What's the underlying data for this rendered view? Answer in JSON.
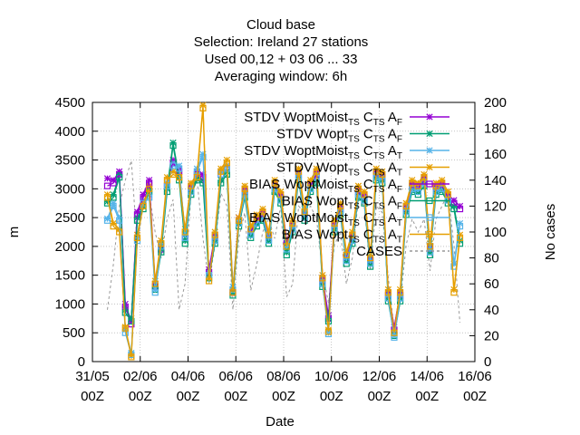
{
  "chart_data": {
    "type": "line",
    "title_lines": [
      "Cloud base",
      "Selection: Ireland      27 stations",
      "Used  00,12  + 03 06 ... 33",
      "Averaging window:  6h"
    ],
    "xlabel": "Date",
    "ylabel": "m",
    "y2label": "No cases",
    "xlim": [
      "2021-05-31 00:00",
      "2021-06-16 00:00"
    ],
    "ylim": [
      0,
      4500
    ],
    "y2lim": [
      0,
      200
    ],
    "x_ticks": [
      "31/05\n00Z",
      "02/06\n00Z",
      "04/06\n00Z",
      "06/06\n00Z",
      "08/06\n00Z",
      "10/06\n00Z",
      "12/06\n00Z",
      "14/06\n00Z",
      "16/06\n00Z"
    ],
    "y_ticks": [
      0,
      500,
      1000,
      1500,
      2000,
      2500,
      3000,
      3500,
      4000,
      4500
    ],
    "y2_ticks": [
      0,
      20,
      40,
      60,
      80,
      100,
      120,
      140,
      160,
      180,
      200
    ],
    "grid": true,
    "legend_position": "top-right",
    "x_hours": [
      15,
      21,
      27,
      33,
      39,
      45,
      51,
      57,
      63,
      69,
      75,
      81,
      87,
      93,
      99,
      105,
      111,
      117,
      123,
      129,
      135,
      141,
      147,
      153,
      159,
      165,
      171,
      177,
      183,
      189,
      195,
      201,
      207,
      213,
      219,
      225,
      231,
      237,
      243,
      249,
      255,
      261,
      267,
      273,
      279,
      285,
      291,
      297,
      303,
      309,
      315,
      321,
      327,
      333,
      339,
      345,
      351,
      357,
      363,
      369
    ],
    "series": [
      {
        "name": "STDV WoptMoist_{TS} C_{TS} A_F",
        "axis": "y",
        "color": "#9400d3",
        "marker": "asterisk",
        "values": [
          3180,
          3150,
          3300,
          1000,
          700,
          2600,
          2900,
          3150,
          1350,
          2000,
          3100,
          3500,
          3350,
          2200,
          3050,
          3300,
          3250,
          1600,
          2200,
          3300,
          3400,
          1250,
          2500,
          3000,
          2300,
          2500,
          2600,
          2200,
          3100,
          2900,
          2100,
          2400,
          3300,
          2600,
          3100,
          3300,
          1450,
          800,
          2400,
          2700,
          1850,
          2200,
          3000,
          2900,
          1800,
          3300,
          3250,
          1200,
          600,
          1200,
          2700,
          3100,
          3050,
          3200,
          2000,
          3050,
          3100,
          2900,
          2800,
          2700
        ]
      },
      {
        "name": "STDV Wopt_{TS} C_{TS} A_F",
        "axis": "y",
        "color": "#009e73",
        "marker": "asterisk",
        "values": [
          2780,
          2900,
          3250,
          900,
          750,
          2500,
          2700,
          3000,
          1300,
          1950,
          3000,
          3800,
          3200,
          2100,
          2950,
          3200,
          3150,
          1500,
          2100,
          3150,
          3300,
          1200,
          2400,
          2900,
          2200,
          2400,
          2500,
          2100,
          3000,
          2800,
          1900,
          2300,
          3200,
          2500,
          3000,
          3150,
          1350,
          750,
          2300,
          2600,
          1750,
          2100,
          2900,
          2800,
          1700,
          3200,
          3150,
          1100,
          500,
          1100,
          2600,
          3000,
          2950,
          3100,
          1900,
          2950,
          3000,
          2800,
          2700,
          2100
        ]
      },
      {
        "name": "STDV WoptMoist_{TS} C_{TS} A_T",
        "axis": "y",
        "color": "#56b4e9",
        "marker": "asterisk",
        "values": [
          2480,
          2750,
          2500,
          550,
          150,
          2150,
          2800,
          2900,
          1250,
          2050,
          3100,
          3450,
          3400,
          2200,
          3000,
          3350,
          3600,
          1550,
          2150,
          3300,
          3400,
          1300,
          2450,
          2950,
          2250,
          2450,
          2550,
          2150,
          3050,
          2850,
          2000,
          2350,
          3250,
          2550,
          3050,
          3250,
          1400,
          500,
          2350,
          2650,
          1800,
          2150,
          2950,
          2850,
          1750,
          3250,
          3200,
          1150,
          450,
          1150,
          2650,
          3050,
          3000,
          3150,
          1950,
          3000,
          3050,
          2850,
          1700,
          2400
        ]
      },
      {
        "name": "STDV Wopt_{TS} C_{TS} A_T",
        "axis": "y",
        "color": "#e69f00",
        "marker": "asterisk",
        "values": [
          2900,
          2400,
          2300,
          600,
          100,
          2200,
          2750,
          3050,
          1400,
          2100,
          3200,
          3300,
          3250,
          2300,
          3100,
          3250,
          4450,
          1450,
          2250,
          3350,
          3500,
          1250,
          2500,
          3050,
          2350,
          2550,
          2650,
          2250,
          3150,
          2950,
          2050,
          2450,
          3350,
          2650,
          3150,
          3350,
          1500,
          550,
          2450,
          2750,
          1900,
          2250,
          3050,
          2950,
          1850,
          3350,
          3300,
          1250,
          550,
          1250,
          2750,
          3150,
          3100,
          3250,
          2050,
          3100,
          3150,
          2950,
          1250,
          2200
        ]
      },
      {
        "name": "BIAS WoptMoist_{TS} C_{TS} A_F",
        "axis": "y",
        "color": "#9400d3",
        "marker": "box",
        "values": [
          3050,
          3100,
          3250,
          950,
          650,
          2550,
          2850,
          3100,
          1300,
          1950,
          3050,
          3450,
          3300,
          2150,
          3000,
          3250,
          3200,
          1550,
          2150,
          3250,
          3350,
          1200,
          2450,
          2950,
          2250,
          2450,
          2550,
          2150,
          3050,
          2850,
          2050,
          2350,
          3250,
          2550,
          3050,
          3250,
          1400,
          750,
          2350,
          2650,
          1800,
          2150,
          2950,
          2850,
          1750,
          3250,
          3200,
          1150,
          550,
          1150,
          2650,
          3050,
          3000,
          3150,
          1950,
          3000,
          3050,
          2850,
          2750,
          2650
        ]
      },
      {
        "name": "BIAS Wopt_{TS} C_{TS} A_F",
        "axis": "y",
        "color": "#009e73",
        "marker": "box",
        "values": [
          2750,
          2850,
          3200,
          850,
          700,
          2450,
          2650,
          2950,
          1250,
          1900,
          2950,
          3750,
          3150,
          2050,
          2900,
          3150,
          3100,
          1450,
          2050,
          3100,
          3250,
          1150,
          2350,
          2850,
          2150,
          2350,
          2450,
          2050,
          2950,
          2750,
          1850,
          2250,
          3150,
          2450,
          2950,
          3100,
          1300,
          700,
          2250,
          2550,
          1700,
          2050,
          2850,
          2750,
          1650,
          3150,
          3100,
          1050,
          450,
          1050,
          2550,
          2950,
          2900,
          3050,
          1850,
          2900,
          2950,
          2750,
          2650,
          2050
        ]
      },
      {
        "name": "BIAS WoptMoist_{TS} C_{TS} A_T",
        "axis": "y",
        "color": "#56b4e9",
        "marker": "box",
        "values": [
          2450,
          2700,
          2450,
          500,
          120,
          2100,
          2750,
          2850,
          1200,
          2000,
          3050,
          3400,
          3350,
          2150,
          2950,
          3300,
          3550,
          1500,
          2100,
          3250,
          3350,
          1250,
          2400,
          2900,
          2200,
          2400,
          2500,
          2100,
          3000,
          2800,
          1950,
          2300,
          3200,
          2500,
          3000,
          3200,
          1350,
          480,
          2300,
          2600,
          1750,
          2100,
          2900,
          2800,
          1700,
          3200,
          3150,
          1100,
          420,
          1100,
          2600,
          3000,
          2950,
          3100,
          1900,
          2950,
          3000,
          2800,
          1650,
          2350
        ]
      },
      {
        "name": "BIAS Wopt_{TS} C_{TS} A_T",
        "axis": "y",
        "color": "#e69f00",
        "marker": "box",
        "values": [
          2850,
          2350,
          2250,
          580,
          80,
          2150,
          2700,
          3000,
          1350,
          2050,
          3150,
          3250,
          3200,
          2250,
          3050,
          3200,
          4400,
          1400,
          2200,
          3300,
          3450,
          1200,
          2450,
          3000,
          2300,
          2500,
          2600,
          2200,
          3100,
          2900,
          2000,
          2400,
          3300,
          2600,
          3100,
          3300,
          1450,
          520,
          2400,
          2700,
          1850,
          2200,
          3000,
          2900,
          1800,
          3300,
          3250,
          1200,
          500,
          1200,
          2700,
          3100,
          3050,
          3200,
          2000,
          3050,
          3100,
          2900,
          1200,
          2150
        ]
      },
      {
        "name": "CASES",
        "axis": "y2",
        "color": "#999999",
        "marker": "none",
        "values": [
          40,
          75,
          120,
          140,
          155,
          90,
          120,
          130,
          100,
          80,
          110,
          125,
          40,
          60,
          130,
          140,
          95,
          60,
          90,
          130,
          120,
          40,
          95,
          115,
          55,
          75,
          100,
          110,
          95,
          120,
          50,
          60,
          120,
          115,
          120,
          110,
          70,
          45,
          90,
          100,
          60,
          80,
          125,
          120,
          70,
          120,
          115,
          65,
          25,
          45,
          90,
          110,
          100,
          110,
          70,
          110,
          120,
          130,
          90,
          30
        ]
      }
    ]
  }
}
